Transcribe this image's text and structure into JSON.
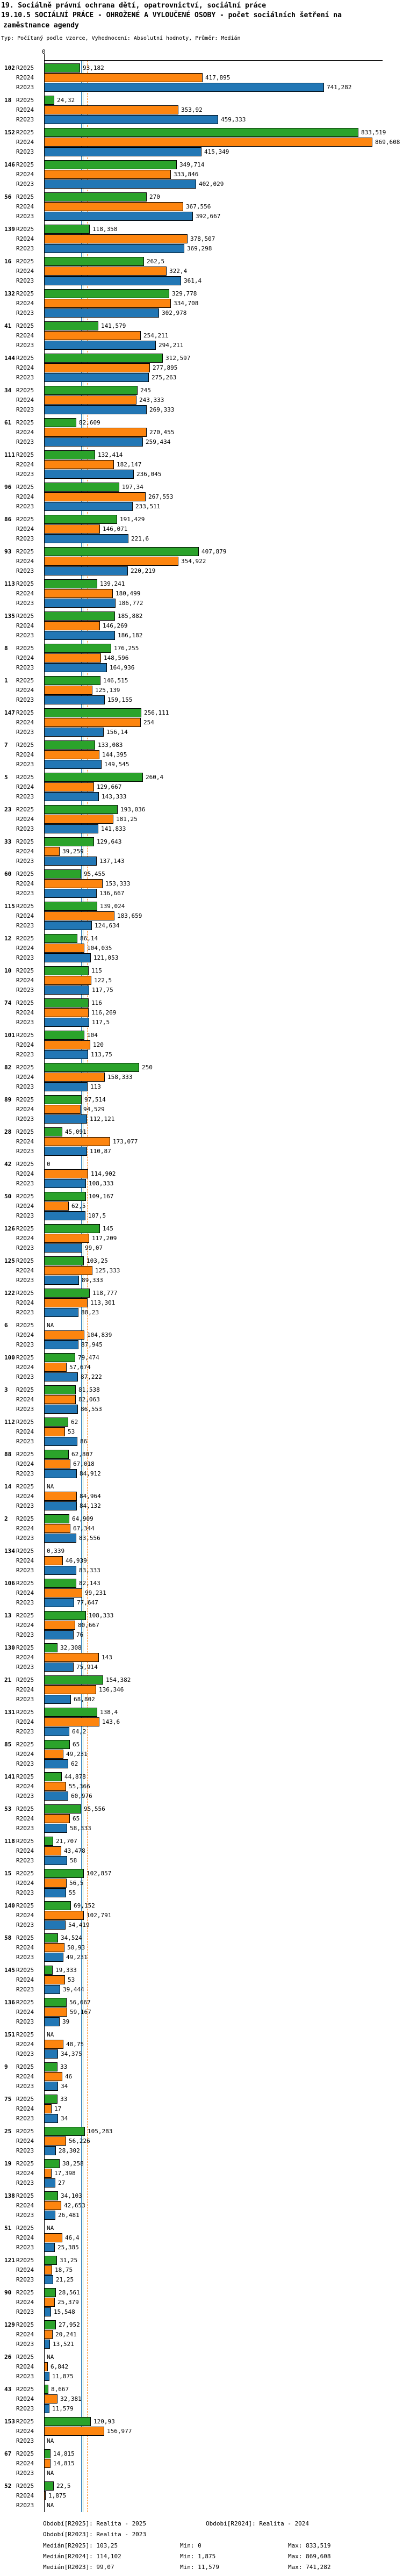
{
  "title_line1": "19. Sociálně právní ochrana dětí, opatrovnictví, sociální práce",
  "title_line2": "19.10.5 SOCIÁLNÍ PRÁCE - OHROŽENÉ A VYLOUČENÉ OSOBY - počet sociálních šetření na",
  "title_line3": "zaměstnance agendy",
  "subtitle": "Typ: Počítaný podle vzorce, Vyhodnocení: Absolutní hodnoty, Průměr: Medián",
  "axis": {
    "zero_label": "0"
  },
  "series_colors": {
    "R2025": "#2ba32b",
    "R2024": "#fd850f",
    "R2023": "#2277b5"
  },
  "median_lines": [
    {
      "series": "R2023",
      "value": 99.07,
      "color": "#2277b5",
      "style": "solid"
    },
    {
      "series": "R2025",
      "value": 103.25,
      "color": "#2ba32b",
      "style": "solid"
    },
    {
      "series": "R2024",
      "value": 114.102,
      "color": "#fd850f",
      "style": "dashed"
    }
  ],
  "chart_data": {
    "type": "bar",
    "orientation": "horizontal",
    "axis_max": 900,
    "series_order": [
      "R2025",
      "R2024",
      "R2023"
    ],
    "groups": [
      {
        "label": "102",
        "R2025": "93,182",
        "R2024": "417,895",
        "R2023": "741,282"
      },
      {
        "label": "18",
        "R2025": "24,32",
        "R2024": "353,92",
        "R2023": "459,333"
      },
      {
        "label": "152",
        "R2025": "833,519",
        "R2024": "869,608",
        "R2023": "415,349"
      },
      {
        "label": "146",
        "R2025": "349,714",
        "R2024": "333,846",
        "R2023": "402,029"
      },
      {
        "label": "56",
        "R2025": "270",
        "R2024": "367,556",
        "R2023": "392,667"
      },
      {
        "label": "139",
        "R2025": "118,358",
        "R2024": "378,507",
        "R2023": "369,298"
      },
      {
        "label": "16",
        "R2025": "262,5",
        "R2024": "322,4",
        "R2023": "361,4"
      },
      {
        "label": "132",
        "R2025": "329,778",
        "R2024": "334,708",
        "R2023": "302,978"
      },
      {
        "label": "41",
        "R2025": "141,579",
        "R2024": "254,211",
        "R2023": "294,211"
      },
      {
        "label": "144",
        "R2025": "312,597",
        "R2024": "277,895",
        "R2023": "275,263"
      },
      {
        "label": "34",
        "R2025": "245",
        "R2024": "243,333",
        "R2023": "269,333"
      },
      {
        "label": "61",
        "R2025": "82,609",
        "R2024": "270,455",
        "R2023": "259,434"
      },
      {
        "label": "111",
        "R2025": "132,414",
        "R2024": "182,147",
        "R2023": "236,045"
      },
      {
        "label": "96",
        "R2025": "197,34",
        "R2024": "267,553",
        "R2023": "233,511"
      },
      {
        "label": "86",
        "R2025": "191,429",
        "R2024": "146,071",
        "R2023": "221,6"
      },
      {
        "label": "93",
        "R2025": "407,879",
        "R2024": "354,922",
        "R2023": "220,219"
      },
      {
        "label": "113",
        "R2025": "139,241",
        "R2024": "180,499",
        "R2023": "186,772"
      },
      {
        "label": "135",
        "R2025": "185,882",
        "R2024": "146,269",
        "R2023": "186,182"
      },
      {
        "label": "8",
        "R2025": "176,255",
        "R2024": "148,596",
        "R2023": "164,936"
      },
      {
        "label": "1",
        "R2025": "146,515",
        "R2024": "125,139",
        "R2023": "159,155"
      },
      {
        "label": "147",
        "R2025": "256,111",
        "R2024": "254",
        "R2023": "156,14"
      },
      {
        "label": "7",
        "R2025": "133,083",
        "R2024": "144,395",
        "R2023": "149,545"
      },
      {
        "label": "5",
        "R2025": "260,4",
        "R2024": "129,667",
        "R2023": "143,333"
      },
      {
        "label": "23",
        "R2025": "193,036",
        "R2024": "181,25",
        "R2023": "141,833"
      },
      {
        "label": "33",
        "R2025": "129,643",
        "R2024": "39,259",
        "R2023": "137,143"
      },
      {
        "label": "60",
        "R2025": "95,455",
        "R2024": "153,333",
        "R2023": "136,667"
      },
      {
        "label": "115",
        "R2025": "139,024",
        "R2024": "183,659",
        "R2023": "124,634"
      },
      {
        "label": "12",
        "R2025": "86,14",
        "R2024": "104,035",
        "R2023": "121,053"
      },
      {
        "label": "10",
        "R2025": "115",
        "R2024": "122,5",
        "R2023": "117,75"
      },
      {
        "label": "74",
        "R2025": "116",
        "R2024": "116,269",
        "R2023": "117,5"
      },
      {
        "label": "101",
        "R2025": "104",
        "R2024": "120",
        "R2023": "113,75"
      },
      {
        "label": "82",
        "R2025": "250",
        "R2024": "158,333",
        "R2023": "113"
      },
      {
        "label": "89",
        "R2025": "97,514",
        "R2024": "94,529",
        "R2023": "112,121"
      },
      {
        "label": "28",
        "R2025": "45,091",
        "R2024": "173,077",
        "R2023": "110,87"
      },
      {
        "label": "42",
        "R2025": "0",
        "R2024": "114,902",
        "R2023": "108,333"
      },
      {
        "label": "50",
        "R2025": "109,167",
        "R2024": "62,5",
        "R2023": "107,5"
      },
      {
        "label": "126",
        "R2025": "145",
        "R2024": "117,209",
        "R2023": "99,07"
      },
      {
        "label": "125",
        "R2025": "103,25",
        "R2024": "125,333",
        "R2023": "89,333"
      },
      {
        "label": "122",
        "R2025": "118,777",
        "R2024": "113,301",
        "R2023": "88,23"
      },
      {
        "label": "6",
        "R2025": "NA",
        "R2024": "104,839",
        "R2023": "87,945"
      },
      {
        "label": "100",
        "R2025": "79,474",
        "R2024": "57,674",
        "R2023": "87,222"
      },
      {
        "label": "3",
        "R2025": "81,538",
        "R2024": "82,063",
        "R2023": "86,553"
      },
      {
        "label": "112",
        "R2025": "62",
        "R2024": "53",
        "R2023": "86"
      },
      {
        "label": "88",
        "R2025": "62,807",
        "R2024": "67,018",
        "R2023": "84,912"
      },
      {
        "label": "14",
        "R2025": "NA",
        "R2024": "84,964",
        "R2023": "84,132"
      },
      {
        "label": "2",
        "R2025": "64,909",
        "R2024": "67,344",
        "R2023": "83,556"
      },
      {
        "label": "134",
        "R2025": "0,339",
        "R2024": "46,939",
        "R2023": "83,333"
      },
      {
        "label": "106",
        "R2025": "82,143",
        "R2024": "99,231",
        "R2023": "77,647"
      },
      {
        "label": "13",
        "R2025": "108,333",
        "R2024": "80,667",
        "R2023": "76"
      },
      {
        "label": "130",
        "R2025": "32,308",
        "R2024": "143",
        "R2023": "75,914"
      },
      {
        "label": "21",
        "R2025": "154,382",
        "R2024": "136,346",
        "R2023": "68,802"
      },
      {
        "label": "131",
        "R2025": "138,4",
        "R2024": "143,6",
        "R2023": "64,2"
      },
      {
        "label": "85",
        "R2025": "65",
        "R2024": "49,231",
        "R2023": "62"
      },
      {
        "label": "141",
        "R2025": "44,878",
        "R2024": "55,366",
        "R2023": "60,976"
      },
      {
        "label": "53",
        "R2025": "95,556",
        "R2024": "65",
        "R2023": "58,333"
      },
      {
        "label": "118",
        "R2025": "21,707",
        "R2024": "43,478",
        "R2023": "58"
      },
      {
        "label": "15",
        "R2025": "102,857",
        "R2024": "56,5",
        "R2023": "55"
      },
      {
        "label": "140",
        "R2025": "69,152",
        "R2024": "102,791",
        "R2023": "54,419"
      },
      {
        "label": "58",
        "R2025": "34,524",
        "R2024": "50,93",
        "R2023": "49,231"
      },
      {
        "label": "145",
        "R2025": "19,333",
        "R2024": "53",
        "R2023": "39,444"
      },
      {
        "label": "136",
        "R2025": "56,667",
        "R2024": "59,167",
        "R2023": "39"
      },
      {
        "label": "151",
        "R2025": "NA",
        "R2024": "48,75",
        "R2023": "34,375"
      },
      {
        "label": "9",
        "R2025": "33",
        "R2024": "46",
        "R2023": "34"
      },
      {
        "label": "75",
        "R2025": "33",
        "R2024": "17",
        "R2023": "34"
      },
      {
        "label": "25",
        "R2025": "105,283",
        "R2024": "56,226",
        "R2023": "28,302"
      },
      {
        "label": "19",
        "R2025": "38,258",
        "R2024": "17,398",
        "R2023": "27"
      },
      {
        "label": "138",
        "R2025": "34,103",
        "R2024": "42,653",
        "R2023": "26,481"
      },
      {
        "label": "51",
        "R2025": "NA",
        "R2024": "46,4",
        "R2023": "25,385"
      },
      {
        "label": "121",
        "R2025": "31,25",
        "R2024": "18,75",
        "R2023": "21,25"
      },
      {
        "label": "90",
        "R2025": "28,561",
        "R2024": "25,379",
        "R2023": "15,548"
      },
      {
        "label": "129",
        "R2025": "27,952",
        "R2024": "20,241",
        "R2023": "13,521"
      },
      {
        "label": "26",
        "R2025": "NA",
        "R2024": "6,842",
        "R2023": "11,875"
      },
      {
        "label": "43",
        "R2025": "8,667",
        "R2024": "32,381",
        "R2023": "11,579"
      },
      {
        "label": "153",
        "R2025": "120,93",
        "R2024": "156,977",
        "R2023": "NA"
      },
      {
        "label": "67",
        "R2025": "14,815",
        "R2024": "14,815",
        "R2023": "NA"
      },
      {
        "label": "52",
        "R2025": "22,5",
        "R2024": "1,875",
        "R2023": "NA"
      }
    ]
  },
  "footer": {
    "periods": [
      "Období[R2025]: Realita - 2025",
      "Období[R2024]: Realita - 2024",
      "Období[R2023]: Realita - 2023"
    ],
    "stats": [
      {
        "median": "Medián[R2025]: 103,25",
        "min": "Min: 0",
        "max": "Max: 833,519"
      },
      {
        "median": "Medián[R2024]: 114,102",
        "min": "Min: 1,875",
        "max": "Max: 869,608"
      },
      {
        "median": "Medián[R2023]: 99,07",
        "min": "Min: 11,579",
        "max": "Max: 741,282"
      }
    ]
  }
}
